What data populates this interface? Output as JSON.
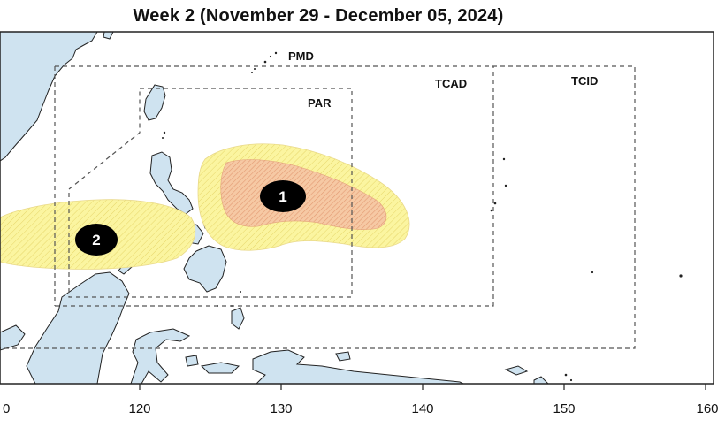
{
  "title": "Week 2 (November 29 - December 05, 2024)",
  "zones": {
    "pmd": "PMD",
    "tcad": "TCAD",
    "tcid": "TCID",
    "par": "PAR"
  },
  "areas": [
    {
      "number": "1",
      "likelihood": "high-and-low"
    },
    {
      "number": "2",
      "likelihood": "low"
    }
  ],
  "x_axis": {
    "ticks": [
      "0",
      "120",
      "130",
      "140",
      "150",
      "160"
    ]
  },
  "colors": {
    "land": "#cfe3f0",
    "ocean": "#ffffff",
    "low_likelihood": "#fbf5a0",
    "high_likelihood": "#f3b998",
    "marker": "#000000",
    "boundary": "#555555"
  }
}
